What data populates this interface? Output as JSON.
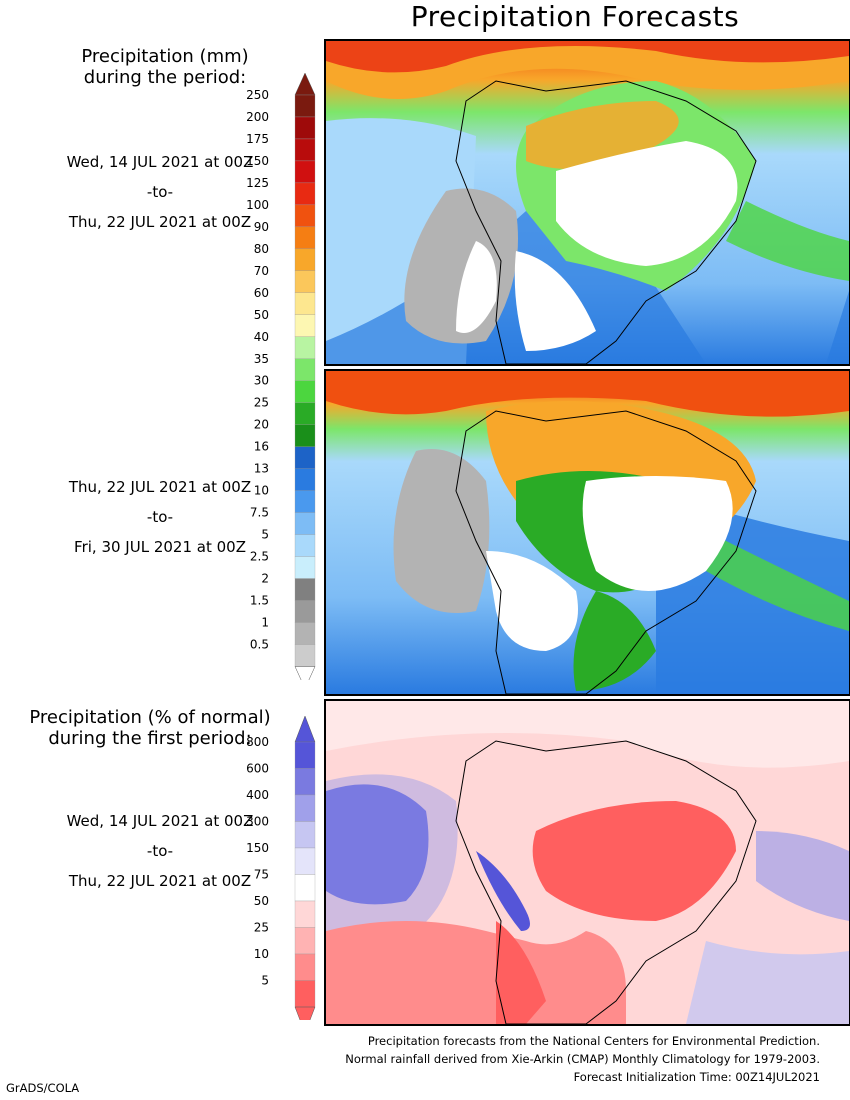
{
  "title": "Precipitation Forecasts",
  "legend_mm": {
    "header": [
      "Precipitation (mm)",
      "during the period:"
    ],
    "labels": [
      "250",
      "200",
      "175",
      "150",
      "125",
      "100",
      "90",
      "80",
      "70",
      "60",
      "50",
      "40",
      "35",
      "30",
      "25",
      "20",
      "16",
      "13",
      "10",
      "7.5",
      "5",
      "2.5",
      "2",
      "1.5",
      "1",
      "0.5"
    ],
    "colors": [
      "#7a1a0f",
      "#9e0a0a",
      "#b80c0c",
      "#d01010",
      "#e82a12",
      "#f0520f",
      "#f57e13",
      "#f8a72a",
      "#fbc75b",
      "#fde78f",
      "#fdf7b2",
      "#b8f4a2",
      "#7ce66a",
      "#4cd63f",
      "#2aab26",
      "#1a8f1a",
      "#1d63c7",
      "#2a7be0",
      "#4a99ee",
      "#7dbcf5",
      "#a9d9fb",
      "#c9eefc",
      "#808080",
      "#9a9a9a",
      "#b3b3b3",
      "#cccccc"
    ]
  },
  "legend_pct": {
    "header": [
      "Precipitation (% of normal)",
      "during the first period:"
    ],
    "labels": [
      "800",
      "600",
      "400",
      "300",
      "150",
      "75",
      "50",
      "25",
      "10",
      "5"
    ],
    "colors": [
      "#5555d8",
      "#7a7ae0",
      "#a0a0ea",
      "#c6c6f2",
      "#e4e4fa",
      "#ffffff",
      "#ffd7d7",
      "#ffb3b3",
      "#ff8c8c",
      "#ff5f5f"
    ]
  },
  "period1": {
    "start": "Wed, 14 JUL 2021 at 00Z",
    "sep": "-to-",
    "end": "Thu, 22 JUL 2021 at 00Z"
  },
  "period2": {
    "start": "Thu, 22 JUL 2021 at 00Z",
    "sep": "-to-",
    "end": "Fri, 30 JUL 2021 at 00Z"
  },
  "period3": {
    "start": "Wed, 14 JUL 2021 at 00Z",
    "sep": "-to-",
    "end": "Thu, 22 JUL 2021 at 00Z"
  },
  "footer": {
    "line1": "Precipitation forecasts from the National Centers for Environmental Prediction.",
    "line2": "Normal rainfall derived from Xie-Arkin (CMAP) Monthly Climatology for 1979-2003.",
    "line3": "Forecast Initialization Time: 00Z14JUL2021"
  },
  "brand": "GrADS/COLA"
}
